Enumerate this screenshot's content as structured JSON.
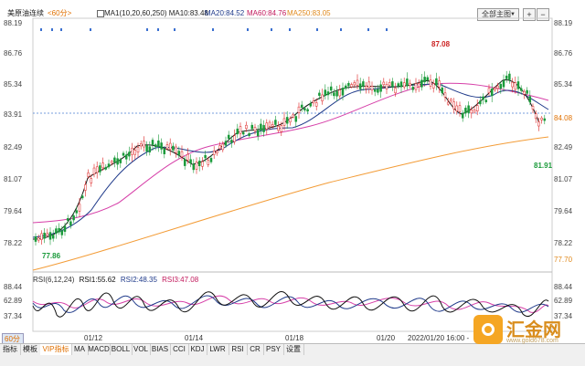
{
  "header": {
    "title": "美原油连续",
    "period": "<60分>",
    "ma_label": "MA1(10,20,60,250) MA10:83.48",
    "ma20": "MA20:84.52",
    "ma60": "MA60:84.76",
    "ma250": "MA250:83.05",
    "select_label": "全部主图",
    "add_label": "+",
    "remove_label": "−"
  },
  "price_axis": {
    "left": [
      "88.19",
      "86.76",
      "85.34",
      "83.91",
      "82.49",
      "81.07",
      "79.64",
      "78.22"
    ],
    "right": [
      "88.19",
      "86.76",
      "85.34",
      "84.08",
      "82.49",
      "81.07",
      "79.64",
      "78.22",
      "77.70"
    ]
  },
  "annotations": {
    "high": "87.08",
    "low_left": "77.86",
    "low_right": "81.91"
  },
  "rsi": {
    "header": [
      "RSI(6,12,24)",
      "RSI1:55.62",
      "RSI2:48.35",
      "RSI3:47.08"
    ],
    "axis_left": [
      "88.44",
      "62.89",
      "37.34"
    ],
    "axis_right": [
      "88.44",
      "62.89",
      "37.34"
    ]
  },
  "dates": [
    "01/12",
    "01/14",
    "01/18",
    "01/20"
  ],
  "timestamp": "2022/01/20 16:00 -",
  "period_indicator": "60分",
  "tabs": [
    "指标",
    "模板",
    "VIP指标",
    "MA",
    "MACD",
    "BOLL",
    "VOL",
    "BIAS",
    "CCI",
    "KDJ",
    "LWR",
    "RSI",
    "CR",
    "PSY",
    "设置"
  ],
  "watermark": {
    "text": "汇金网",
    "url": "www.gold678.com"
  },
  "colors": {
    "ma10": "#1a1a1a",
    "ma20": "#1f3a8a",
    "ma60": "#d63fa8",
    "ma250": "#f39c37",
    "up": "#d22",
    "down": "#1a9a3a",
    "accent": "#e07000"
  }
}
